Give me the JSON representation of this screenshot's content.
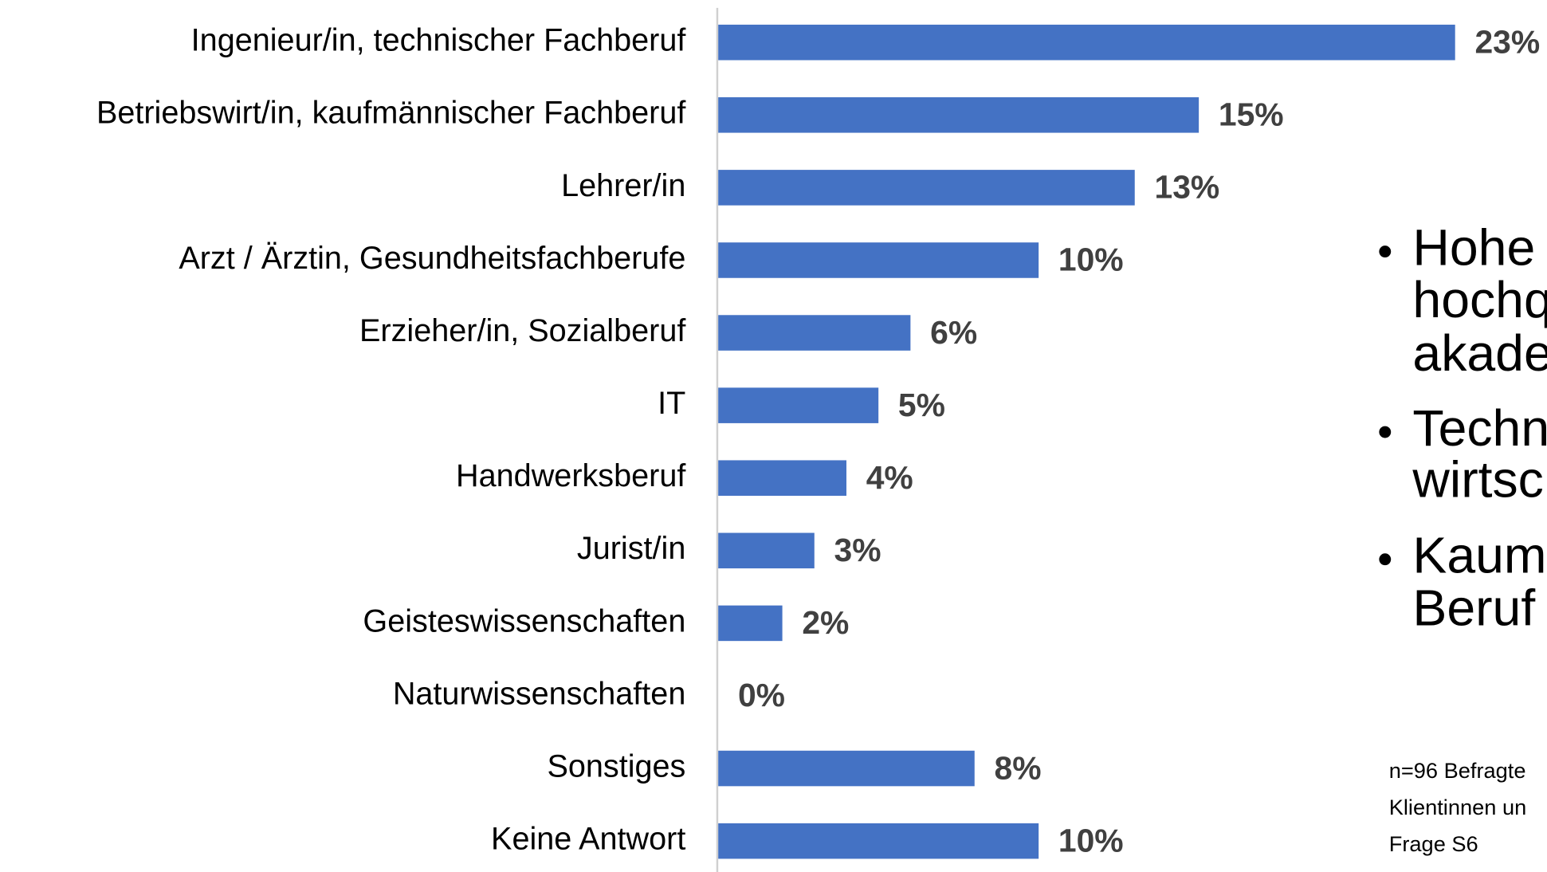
{
  "chart_data": {
    "type": "bar",
    "orientation": "horizontal",
    "categories": [
      "Ingenieur/in, technischer Fachberuf",
      "Betriebswirt/in, kaufmännischer Fachberuf",
      "Lehrer/in",
      "Arzt / Ärztin, Gesundheitsfachberufe",
      "Erzieher/in, Sozialberuf",
      "IT",
      "Handwerksberuf",
      "Jurist/in",
      "Geisteswissenschaften",
      "Naturwissenschaften",
      "Sonstiges",
      "Keine Antwort"
    ],
    "values": [
      23,
      15,
      13,
      10,
      6,
      5,
      4,
      3,
      2,
      0,
      8,
      10
    ],
    "value_labels": [
      "23%",
      "15%",
      "13%",
      "10%",
      "6%",
      "5%",
      "4%",
      "3%",
      "2%",
      "0%",
      "8%",
      "10%"
    ],
    "color": "#4472c4",
    "xlim": [
      0,
      25
    ]
  },
  "bullets": [
    [
      "Hohe",
      "hochq",
      "akade"
    ],
    [
      "Techn",
      "wirtsc"
    ],
    [
      "Kaum",
      "Beruf"
    ]
  ],
  "footnote": [
    "n=96 Befragte",
    "Klientinnen un",
    "Frage S6"
  ]
}
